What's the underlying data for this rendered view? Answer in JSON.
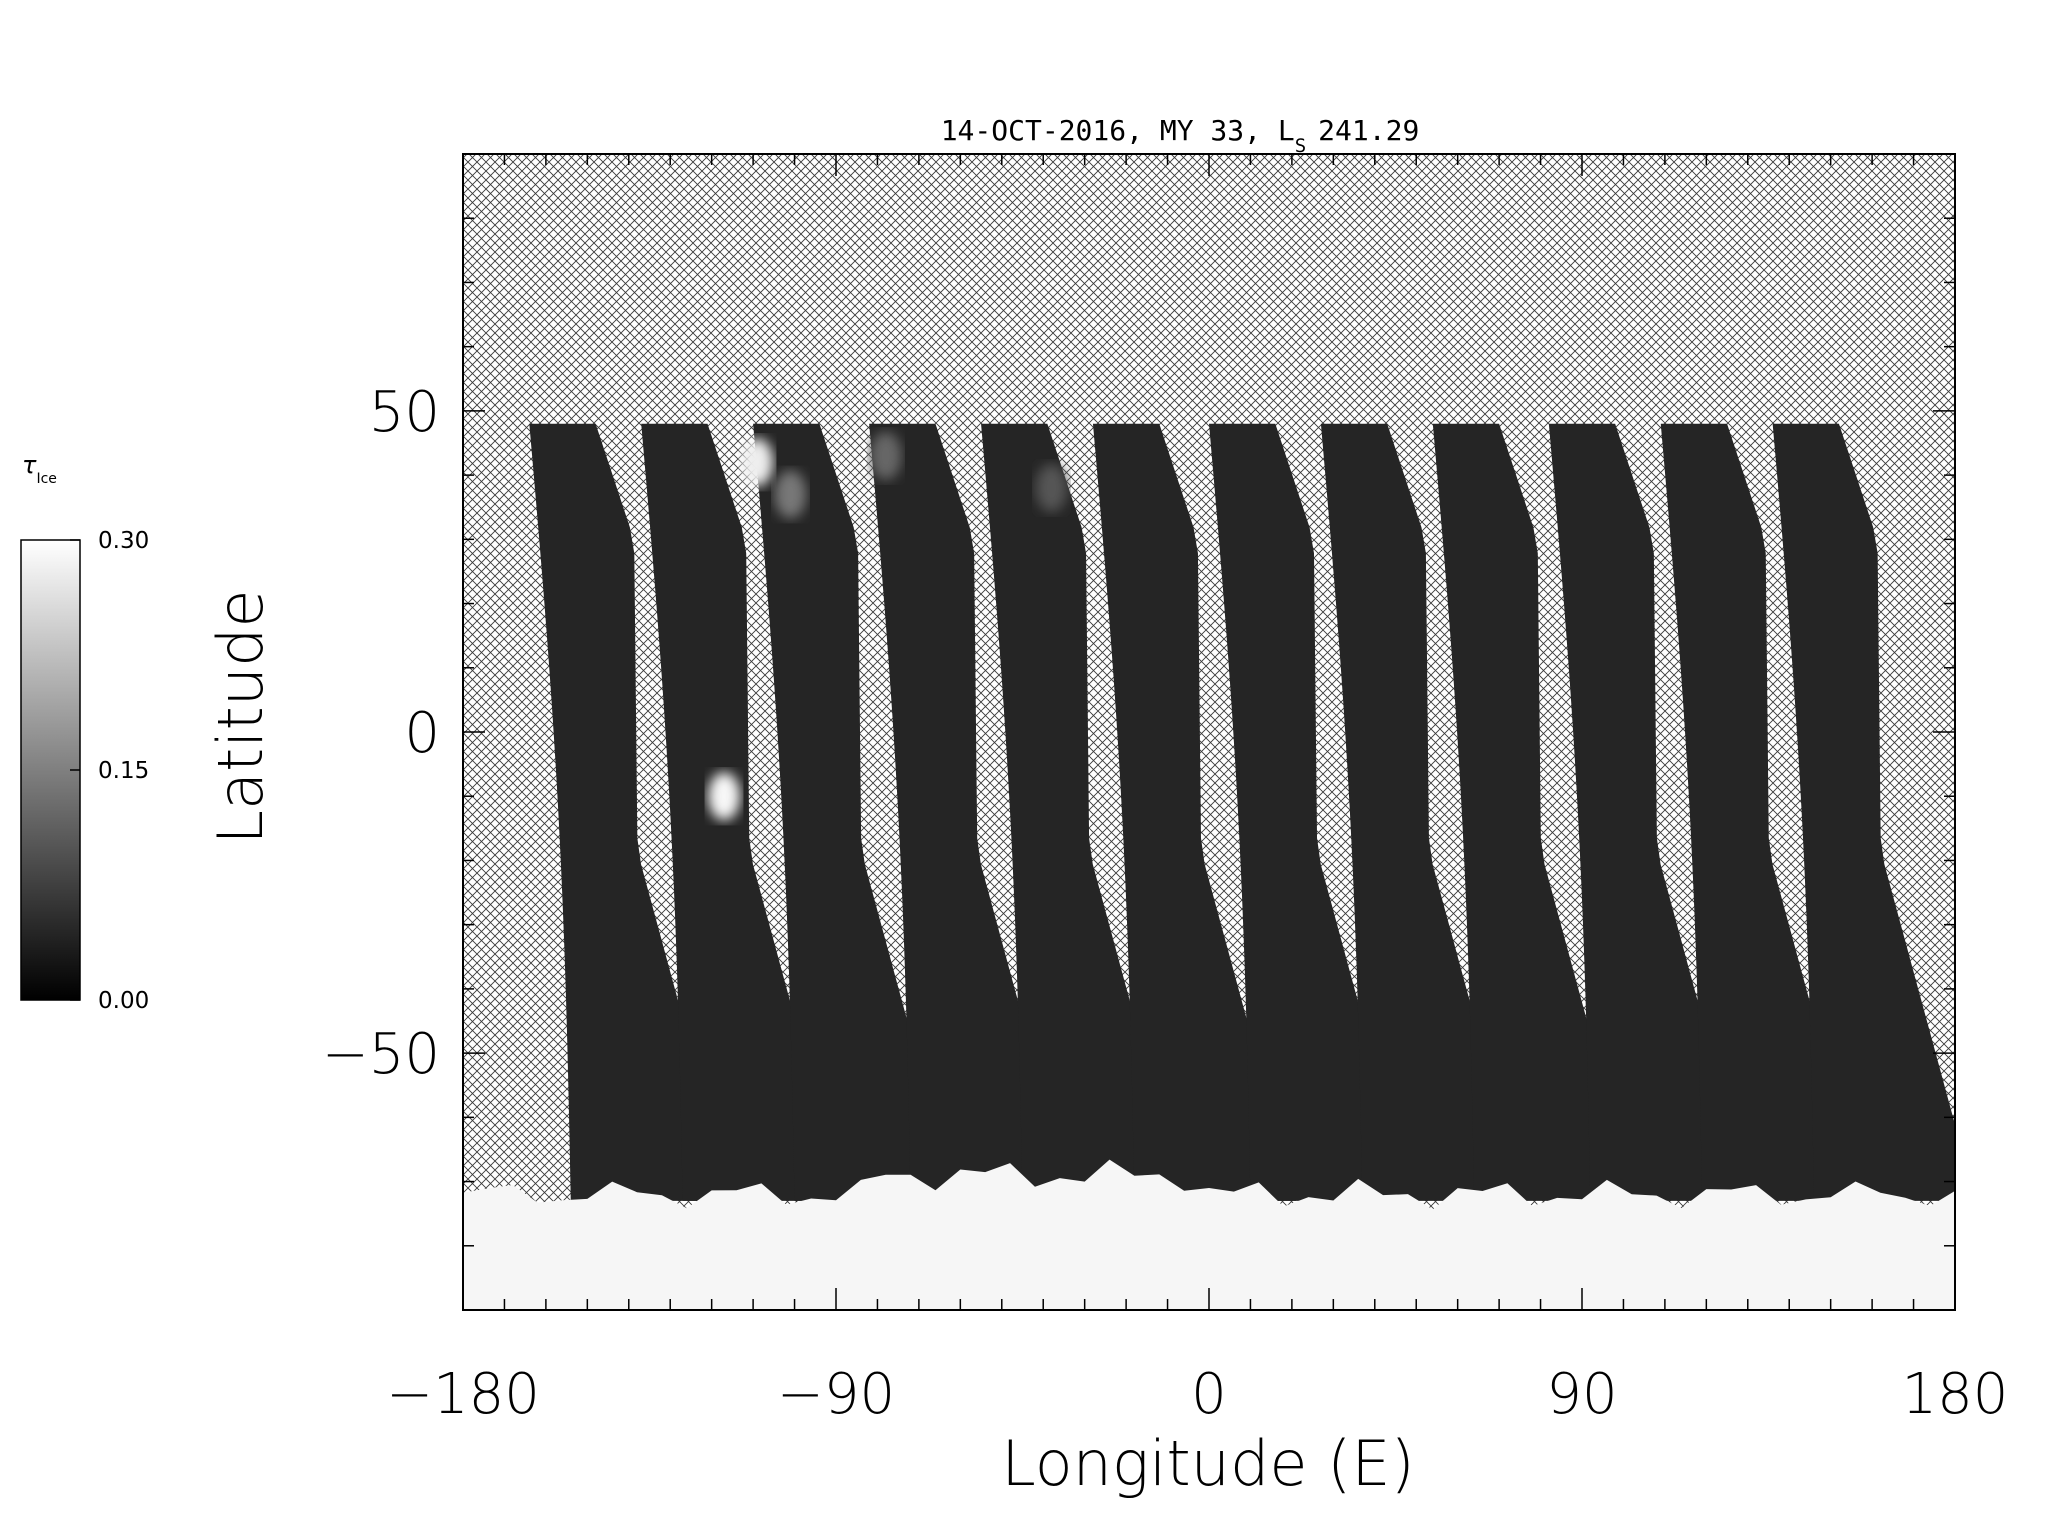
{
  "chart_data": {
    "type": "heatmap",
    "title_main": "14-OCT-2016, MY 33,  L",
    "title_sub": "S",
    "title_value": "241.29",
    "xlabel": "Longitude (E)",
    "ylabel": "Latitude",
    "xlim": [
      -180,
      180
    ],
    "ylim": [
      -90,
      90
    ],
    "x_ticks": [
      "-180",
      "-90",
      "0",
      "90",
      "180"
    ],
    "y_ticks": [
      "50",
      "0",
      "-50"
    ],
    "colorbar": {
      "label_main": "τ",
      "label_sub": "Ice",
      "ticks": [
        "0.30",
        "0.15",
        "0.00"
      ],
      "range": [
        0.0,
        0.3
      ],
      "colormap": "grayscale"
    },
    "missing_data_pattern": "crosshatch",
    "swaths": {
      "count": 12,
      "start_lon_at_north": [
        -164,
        -137,
        -110,
        -82,
        -55,
        -28,
        0,
        27,
        54,
        82,
        109,
        136
      ],
      "north_lat": 48,
      "south_lat": -73,
      "background_opacity": 0.02
    },
    "features": [
      {
        "lon": -109,
        "lat": 42,
        "opacity": 0.28
      },
      {
        "lon": -101,
        "lat": 37,
        "opacity": 0.14
      },
      {
        "lon": -117,
        "lat": -10,
        "opacity": 0.29
      },
      {
        "lon": -78,
        "lat": 43,
        "opacity": 0.12
      },
      {
        "lon": -38,
        "lat": 38,
        "opacity": 0.1
      }
    ],
    "south_polar_ice_opacity": 0.3,
    "south_polar_ice_edge_lat": -72
  },
  "colors": {
    "background": "#ffffff",
    "swath_dark": "#141414",
    "ice_bright": "#f6f6f6",
    "axis": "#000000"
  }
}
